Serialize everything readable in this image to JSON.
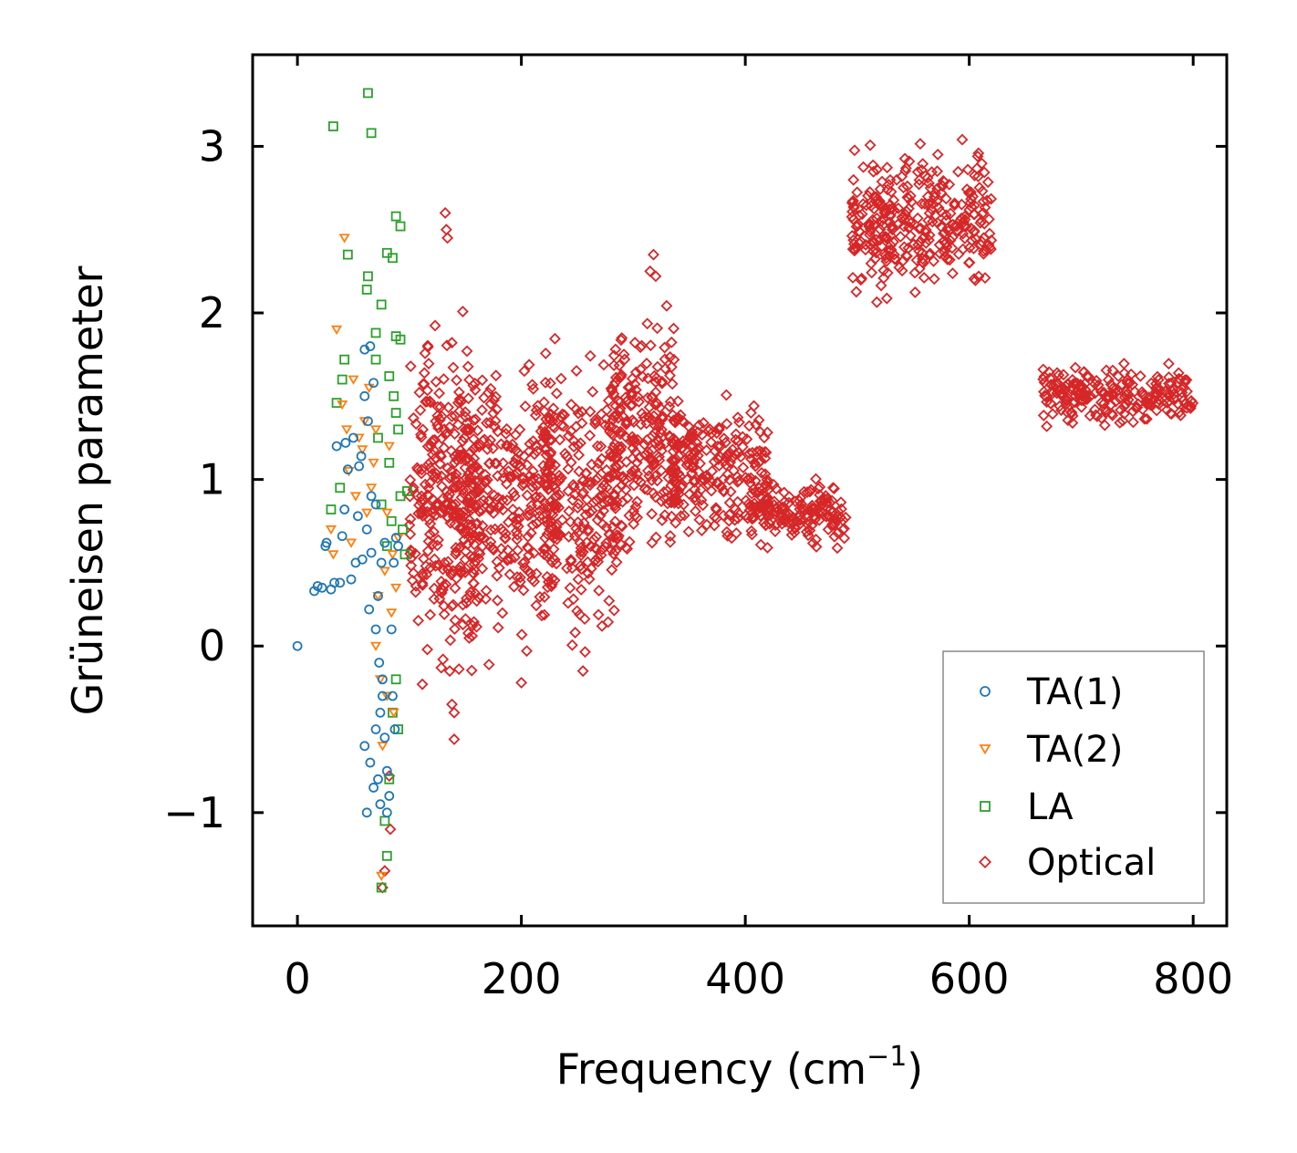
{
  "chart_data": {
    "type": "scatter",
    "title": "",
    "xlabel": "Frequency (cm",
    "xlabel_sup": "−1",
    "xlabel_end": ")",
    "ylabel": "Grüneisen parameter",
    "xlim": [
      -40,
      830
    ],
    "ylim": [
      -1.68,
      3.55
    ],
    "xticks": [
      0,
      200,
      400,
      600,
      800
    ],
    "xtick_labels": [
      "0",
      "200",
      "400",
      "600",
      "800"
    ],
    "yticks": [
      -1,
      0,
      1,
      2,
      3
    ],
    "ytick_labels": [
      "−1",
      "0",
      "1",
      "2",
      "3"
    ],
    "grid": false,
    "legend_position": "lower-right",
    "series": [
      {
        "name": "TA(1)",
        "marker": "circle",
        "color": "#1f77b4",
        "points": [
          [
            0,
            0
          ],
          [
            15,
            0.33
          ],
          [
            18,
            0.36
          ],
          [
            22,
            0.35
          ],
          [
            25,
            0.6
          ],
          [
            26,
            0.62
          ],
          [
            30,
            0.34
          ],
          [
            33,
            0.38
          ],
          [
            35,
            1.2
          ],
          [
            38,
            0.38
          ],
          [
            40,
            0.66
          ],
          [
            42,
            0.82
          ],
          [
            43,
            1.22
          ],
          [
            45,
            1.06
          ],
          [
            48,
            0.4
          ],
          [
            50,
            1.25
          ],
          [
            52,
            0.5
          ],
          [
            54,
            0.78
          ],
          [
            55,
            1.08
          ],
          [
            57,
            1.14
          ],
          [
            58,
            0.52
          ],
          [
            60,
            1.5
          ],
          [
            60,
            1.78
          ],
          [
            62,
            0.7
          ],
          [
            63,
            1.35
          ],
          [
            64,
            0.22
          ],
          [
            65,
            1.8
          ],
          [
            66,
            0.56
          ],
          [
            68,
            1.58
          ],
          [
            70,
            0.85
          ],
          [
            70,
            0.1
          ],
          [
            72,
            0.3
          ],
          [
            73,
            -0.1
          ],
          [
            75,
            0.5
          ],
          [
            76,
            -0.3
          ],
          [
            78,
            0.62
          ],
          [
            60,
            -0.6
          ],
          [
            62,
            -1.0
          ],
          [
            65,
            -0.7
          ],
          [
            68,
            -0.85
          ],
          [
            70,
            -0.5
          ],
          [
            72,
            -0.8
          ],
          [
            74,
            -0.4
          ],
          [
            76,
            -0.2
          ],
          [
            78,
            -0.55
          ],
          [
            80,
            -0.75
          ],
          [
            82,
            -0.9
          ],
          [
            84,
            0.1
          ],
          [
            86,
            0.5
          ],
          [
            88,
            0.65
          ],
          [
            85,
            -0.3
          ],
          [
            87,
            -0.5
          ],
          [
            80,
            -1.0
          ],
          [
            74,
            -0.95
          ],
          [
            90,
            0.6
          ],
          [
            66,
            0.9
          ]
        ]
      },
      {
        "name": "TA(2)",
        "marker": "triangle-down",
        "color": "#ff7f0e",
        "points": [
          [
            30,
            0.7
          ],
          [
            32,
            0.55
          ],
          [
            35,
            1.9
          ],
          [
            40,
            1.45
          ],
          [
            42,
            2.45
          ],
          [
            44,
            1.3
          ],
          [
            46,
            1.05
          ],
          [
            48,
            0.62
          ],
          [
            50,
            1.6
          ],
          [
            52,
            0.9
          ],
          [
            55,
            1.25
          ],
          [
            58,
            1.18
          ],
          [
            60,
            1.35
          ],
          [
            62,
            0.8
          ],
          [
            64,
            1.55
          ],
          [
            66,
            0.95
          ],
          [
            68,
            1.1
          ],
          [
            70,
            1.3
          ],
          [
            72,
            0.3
          ],
          [
            74,
            -0.2
          ],
          [
            76,
            -0.6
          ],
          [
            78,
            0.45
          ],
          [
            80,
            0.8
          ],
          [
            82,
            1.2
          ],
          [
            84,
            0.2
          ],
          [
            86,
            -0.4
          ],
          [
            88,
            0.35
          ],
          [
            90,
            0.65
          ],
          [
            75,
            -1.38
          ],
          [
            70,
            0.0
          ],
          [
            80,
            -0.3
          ],
          [
            85,
            0.55
          ]
        ]
      },
      {
        "name": "LA",
        "marker": "square",
        "color": "#2ca02c",
        "points": [
          [
            32,
            3.12
          ],
          [
            63,
            3.32
          ],
          [
            66,
            3.08
          ],
          [
            45,
            2.35
          ],
          [
            63,
            2.22
          ],
          [
            62,
            2.14
          ],
          [
            75,
            2.05
          ],
          [
            80,
            2.36
          ],
          [
            85,
            2.33
          ],
          [
            88,
            2.58
          ],
          [
            92,
            2.52
          ],
          [
            70,
            1.88
          ],
          [
            88,
            1.86
          ],
          [
            92,
            1.84
          ],
          [
            42,
            1.72
          ],
          [
            40,
            1.6
          ],
          [
            35,
            1.46
          ],
          [
            82,
            1.62
          ],
          [
            38,
            0.95
          ],
          [
            30,
            0.82
          ],
          [
            70,
            1.72
          ],
          [
            75,
            0.85
          ],
          [
            80,
            0.6
          ],
          [
            84,
            0.75
          ],
          [
            86,
            1.5
          ],
          [
            90,
            1.3
          ],
          [
            92,
            0.9
          ],
          [
            94,
            0.7
          ],
          [
            96,
            0.55
          ],
          [
            98,
            0.93
          ],
          [
            82,
            -0.8
          ],
          [
            85,
            -0.4
          ],
          [
            88,
            -0.2
          ],
          [
            90,
            -0.5
          ],
          [
            80,
            -1.26
          ],
          [
            75,
            -1.45
          ],
          [
            78,
            -1.05
          ],
          [
            72,
            1.25
          ],
          [
            82,
            1.1
          ],
          [
            88,
            1.4
          ]
        ]
      },
      {
        "name": "Optical",
        "marker": "diamond",
        "color": "#d62728",
        "clusters": [
          {
            "x": [
              100,
              160
            ],
            "y": [
              -0.5,
              2.2
            ],
            "n": 260
          },
          {
            "x": [
              140,
              230
            ],
            "y": [
              -0.2,
              2.0
            ],
            "n": 320
          },
          {
            "x": [
              220,
              290
            ],
            "y": [
              -0.15,
              2.0
            ],
            "n": 260
          },
          {
            "x": [
              280,
              340
            ],
            "y": [
              0.3,
              2.2
            ],
            "n": 220
          },
          {
            "x": [
              330,
              420
            ],
            "y": [
              0.5,
              1.6
            ],
            "n": 220
          },
          {
            "x": [
              400,
              490
            ],
            "y": [
              0.55,
              1.05
            ],
            "n": 160
          },
          {
            "x": [
              495,
              620
            ],
            "y": [
              2.0,
              3.1
            ],
            "n": 320
          },
          {
            "x": [
              665,
              800
            ],
            "y": [
              1.28,
              1.72
            ],
            "n": 220
          }
        ],
        "points": [
          [
            132,
            2.6
          ],
          [
            133,
            2.5
          ],
          [
            134,
            2.45
          ],
          [
            140,
            -0.4
          ],
          [
            140,
            -0.56
          ],
          [
            136,
            -0.15
          ],
          [
            138,
            -0.35
          ],
          [
            130,
            -0.08
          ],
          [
            272,
            0.12
          ],
          [
            318,
            2.35
          ],
          [
            315,
            2.25
          ],
          [
            320,
            2.22
          ],
          [
            200,
            -0.22
          ],
          [
            255,
            -0.15
          ],
          [
            83,
            -1.1
          ],
          [
            82,
            -0.78
          ],
          [
            78,
            -1.35
          ],
          [
            76,
            -1.45
          ]
        ]
      }
    ]
  }
}
